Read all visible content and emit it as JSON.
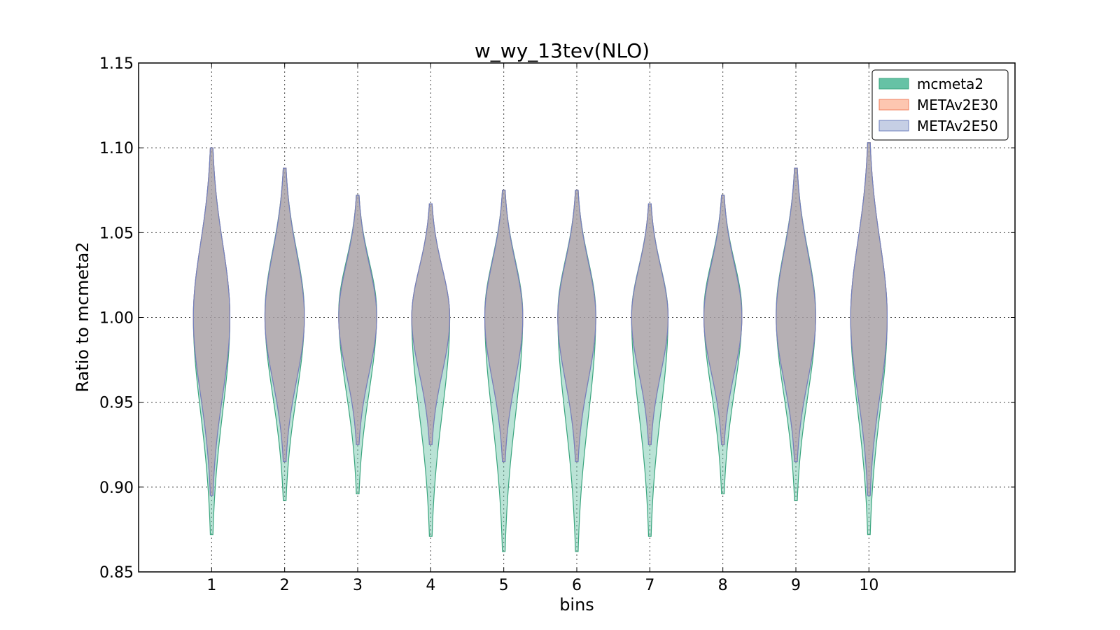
{
  "chart_data": {
    "type": "violin",
    "title": "w_wy_13tev(NLO)",
    "xlabel": "bins",
    "ylabel": "Ratio to mcmeta2",
    "xlim": [
      0,
      12
    ],
    "ylim": [
      0.85,
      1.15
    ],
    "yticks": [
      0.85,
      0.9,
      0.95,
      1.0,
      1.05,
      1.1,
      1.15
    ],
    "ytick_labels": [
      "0.85",
      "0.90",
      "0.95",
      "1.00",
      "1.05",
      "1.10",
      "1.15"
    ],
    "xticks": [
      1,
      2,
      3,
      4,
      5,
      6,
      7,
      8,
      9,
      10
    ],
    "xtick_labels": [
      "1",
      "2",
      "3",
      "4",
      "5",
      "6",
      "7",
      "8",
      "9",
      "10"
    ],
    "grid": true,
    "legend_position": "top-right",
    "series": [
      {
        "name": "mcmeta2",
        "color": "#66c2a5",
        "edge": "#3aa57e",
        "min": [
          0.872,
          0.892,
          0.896,
          0.871,
          0.862,
          0.862,
          0.871,
          0.896,
          0.892,
          0.872
        ],
        "max": [
          1.1,
          1.088,
          1.072,
          1.067,
          1.075,
          1.075,
          1.067,
          1.072,
          1.088,
          1.103
        ],
        "center": [
          1.0,
          1.002,
          1.003,
          1.0,
          1.002,
          1.002,
          1.001,
          1.003,
          1.002,
          1.0
        ],
        "half_width": [
          0.25,
          0.27,
          0.26,
          0.26,
          0.26,
          0.26,
          0.25,
          0.26,
          0.27,
          0.25
        ]
      },
      {
        "name": "METAv2E30",
        "color": "#fc8d62",
        "edge": "#f08060",
        "min": [
          0.895,
          0.915,
          0.925,
          0.925,
          0.915,
          0.915,
          0.925,
          0.925,
          0.915,
          0.895
        ],
        "max": [
          1.1,
          1.088,
          1.072,
          1.067,
          1.075,
          1.075,
          1.067,
          1.072,
          1.088,
          1.103
        ],
        "center": [
          1.0,
          1.0,
          1.0,
          1.0,
          1.0,
          1.0,
          1.0,
          1.0,
          1.0,
          1.0
        ],
        "half_width": [
          0.25,
          0.27,
          0.26,
          0.26,
          0.26,
          0.26,
          0.25,
          0.26,
          0.27,
          0.25
        ]
      },
      {
        "name": "METAv2E50",
        "color": "#8da0cb",
        "edge": "#7080c0",
        "min": [
          0.895,
          0.915,
          0.925,
          0.925,
          0.915,
          0.915,
          0.925,
          0.925,
          0.915,
          0.895
        ],
        "max": [
          1.1,
          1.088,
          1.072,
          1.067,
          1.075,
          1.075,
          1.067,
          1.072,
          1.088,
          1.103
        ],
        "center": [
          1.0,
          1.0,
          1.0,
          1.0,
          1.0,
          1.0,
          1.0,
          1.0,
          1.0,
          1.0
        ],
        "half_width": [
          0.25,
          0.27,
          0.26,
          0.26,
          0.26,
          0.26,
          0.25,
          0.26,
          0.27,
          0.25
        ]
      }
    ]
  }
}
